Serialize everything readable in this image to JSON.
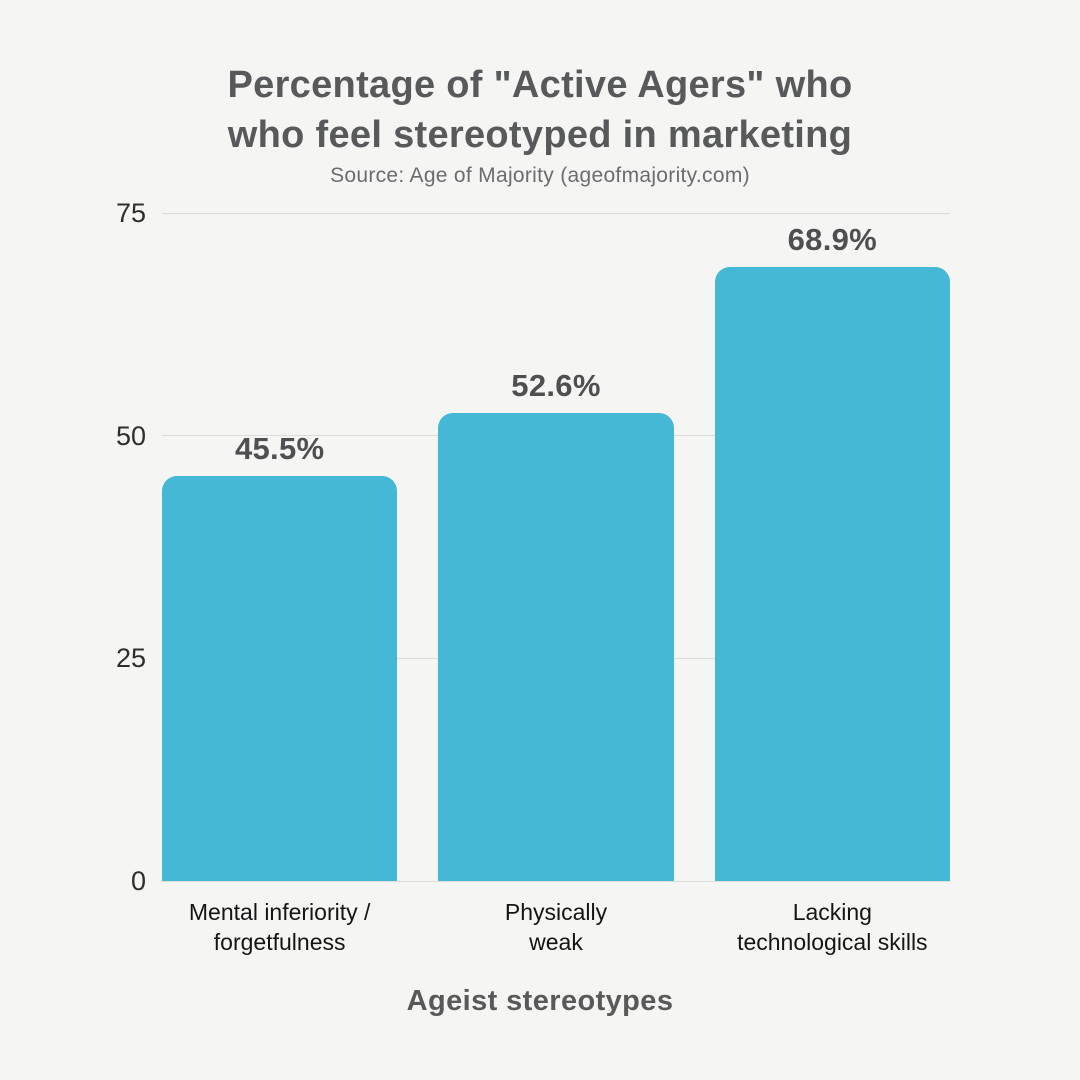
{
  "canvas": {
    "background_color": "#f5f5f3"
  },
  "title": {
    "line1": "Percentage of \"Active Agers\" who",
    "line2": "who feel stereotyped in marketing",
    "color": "#58595b"
  },
  "subtitle": {
    "text": "Source: Age of Majority (ageofmajority.com)",
    "color": "#6b6c6e"
  },
  "chart_data": {
    "type": "bar",
    "title": "Percentage of \"Active Agers\" who who feel stereotyped in marketing",
    "subtitle": "Source: Age of Majority (ageofmajority.com)",
    "categories": [
      "Mental inferiority / forgetfulness",
      "Physically weak",
      "Lacking technological skills"
    ],
    "category_lines": [
      [
        "Mental inferiority /",
        "forgetfulness"
      ],
      [
        "Physically",
        "weak"
      ],
      [
        "Lacking",
        "technological skills"
      ]
    ],
    "values": [
      45.5,
      52.6,
      68.9
    ],
    "value_labels": [
      "45.5%",
      "52.6%",
      "68.9%"
    ],
    "xlabel": "Ageist stereotypes",
    "ylabel": "",
    "y_ticks": [
      0,
      25,
      50,
      75
    ],
    "ylim": [
      0,
      75
    ],
    "grid": true,
    "legend": false,
    "bar_color": "#44b8d4",
    "gridline_color": "#dcdcdb",
    "tick_color": "#2e2e2e",
    "value_label_color": "#4e4f51",
    "category_label_color": "#151515",
    "xlabel_color": "#595959"
  }
}
